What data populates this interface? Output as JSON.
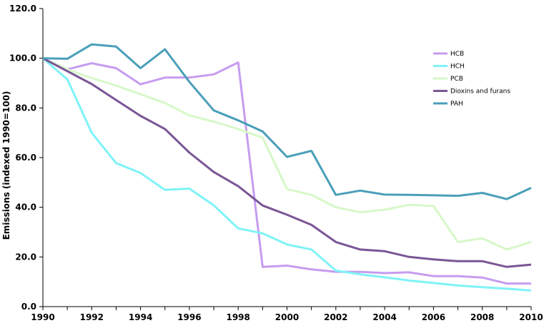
{
  "chart_data": {
    "type": "line",
    "title": "",
    "xlabel": "",
    "ylabel": "Emissions (indexed 1990=100)",
    "xlim": [
      1990,
      2010
    ],
    "ylim": [
      0,
      120
    ],
    "x_ticks": [
      "1990",
      "1992",
      "1994",
      "1996",
      "1998",
      "2000",
      "2002",
      "2004",
      "2006",
      "2008",
      "2010"
    ],
    "y_ticks": [
      "0.0",
      "20.0",
      "40.0",
      "60.0",
      "80.0",
      "100.0",
      "120.0"
    ],
    "grid": false,
    "legend_position": "top-right",
    "x": [
      1990,
      1991,
      1992,
      1993,
      1994,
      1995,
      1996,
      1997,
      1998,
      1999,
      2000,
      2001,
      2002,
      2003,
      2004,
      2005,
      2006,
      2007,
      2008,
      2009,
      2010
    ],
    "series": [
      {
        "name": "HCB",
        "color": "#c69cf0",
        "values": [
          100,
          95.5,
          98,
          96,
          89.5,
          92.2,
          92.2,
          93.5,
          98.3,
          16,
          16.5,
          15,
          14,
          14,
          13.5,
          13.8,
          12.3,
          12.3,
          11.7,
          9.3,
          9.3
        ]
      },
      {
        "name": "HCH",
        "color": "#7ff3f7",
        "values": [
          100,
          91.5,
          70,
          57.8,
          53.8,
          47,
          47.5,
          40.8,
          31.5,
          29.5,
          25,
          23,
          14.5,
          13,
          11.8,
          10.5,
          9.5,
          8.5,
          7.8,
          7.2,
          6.5
        ]
      },
      {
        "name": "PCB",
        "color": "#d6f8c8",
        "values": [
          100,
          95.5,
          92,
          89,
          85.5,
          82,
          77,
          74.5,
          71.5,
          68,
          47.3,
          45,
          40,
          38,
          39,
          41,
          40.5,
          26,
          27.5,
          23,
          26
        ]
      },
      {
        "name": "Dioxins and furans",
        "color": "#7a5695",
        "values": [
          100,
          94.8,
          89.6,
          83.2,
          76.8,
          71.5,
          62,
          54.2,
          48.5,
          40.7,
          37,
          32.9,
          26,
          23,
          22.3,
          20,
          19,
          18.3,
          18.3,
          16,
          16.9
        ]
      },
      {
        "name": "PAH",
        "color": "#4a9fb9",
        "values": [
          100,
          99.8,
          105.6,
          104.7,
          96,
          103.6,
          90.5,
          79,
          75,
          70.5,
          60.3,
          62.7,
          45,
          46.7,
          45.1,
          45,
          44.8,
          44.6,
          45.8,
          43.3,
          47.8
        ]
      }
    ]
  }
}
